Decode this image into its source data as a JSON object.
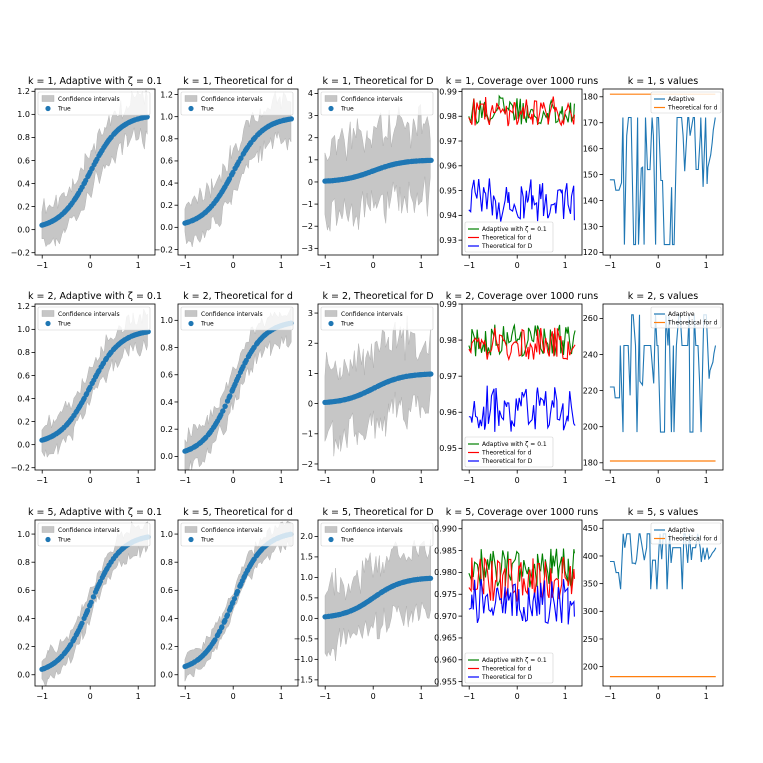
{
  "figure": {
    "description_free": true
  },
  "chart_data": [
    {
      "id": "p11",
      "row": 0,
      "col": 0,
      "type": "band_scatter",
      "title": "k = 1, Adaptive with ζ = 0.1",
      "xlim": [
        -1.15,
        1.35
      ],
      "ylim": [
        -0.22,
        1.22
      ],
      "xticks": [
        -1,
        0,
        1
      ],
      "xtick_labels": [
        "−1",
        "0",
        "1"
      ],
      "yticks": [
        -0.2,
        0.0,
        0.2,
        0.4,
        0.6,
        0.8,
        1.0,
        1.2
      ],
      "ytick_labels": [
        "−0.2",
        "0.0",
        "0.2",
        "0.4",
        "0.6",
        "0.8",
        "1.0",
        "1.2"
      ],
      "band_halfwidth": 0.15,
      "band_noise": 0.07,
      "seed": 11,
      "legend": [
        "Confidence intervals",
        "True"
      ],
      "curve_offset": 0
    },
    {
      "id": "p12",
      "row": 0,
      "col": 1,
      "type": "band_scatter",
      "title": "k = 1, Theoretical for d",
      "xlim": [
        -1.15,
        1.35
      ],
      "ylim": [
        -0.25,
        1.25
      ],
      "xticks": [
        -1,
        0,
        1
      ],
      "xtick_labels": [
        "−1",
        "0",
        "1"
      ],
      "yticks": [
        -0.2,
        0.0,
        0.2,
        0.4,
        0.6,
        0.8,
        1.0,
        1.2
      ],
      "ytick_labels": [
        "−0.2",
        "0.0",
        "0.2",
        "0.4",
        "0.6",
        "0.8",
        "1.0",
        "1.2"
      ],
      "band_halfwidth": 0.16,
      "band_noise": 0.07,
      "seed": 12,
      "legend": [
        "Confidence intervals",
        "True"
      ],
      "curve_offset": 0
    },
    {
      "id": "p13",
      "row": 0,
      "col": 2,
      "type": "band_scatter",
      "title": "k = 1, Theoretical for D",
      "xlim": [
        -1.15,
        1.35
      ],
      "ylim": [
        -3.3,
        4.2
      ],
      "xticks": [
        -1,
        0,
        1
      ],
      "xtick_labels": [
        "−1",
        "0",
        "1"
      ],
      "yticks": [
        -3,
        -2,
        -1,
        0,
        1,
        2,
        3,
        4
      ],
      "ytick_labels": [
        "−3",
        "−2",
        "−1",
        "0",
        "1",
        "2",
        "3",
        "4"
      ],
      "band_halfwidth": 1.2,
      "band_noise": 1.1,
      "seed": 13,
      "legend": [
        "Confidence intervals",
        "True"
      ],
      "curve_offset": 0
    },
    {
      "id": "p14",
      "row": 0,
      "col": 3,
      "type": "coverage",
      "title": "k = 1, Coverage over 1000 runs",
      "xlim": [
        -1.15,
        1.35
      ],
      "ylim": [
        0.924,
        0.991
      ],
      "xticks": [
        -1,
        0,
        1
      ],
      "xtick_labels": [
        "−1",
        "0",
        "1"
      ],
      "yticks": [
        0.93,
        0.94,
        0.95,
        0.96,
        0.97,
        0.98,
        0.99
      ],
      "ytick_labels": [
        "0.93",
        "0.94",
        "0.95",
        "0.96",
        "0.97",
        "0.98",
        "0.99"
      ],
      "series": [
        {
          "name": "Adaptive with ζ = 0.1",
          "color": "#008000",
          "mean": 0.9825,
          "amp": 0.006,
          "seed": 141
        },
        {
          "name": "Theoretical for d",
          "color": "#ff0000",
          "mean": 0.982,
          "amp": 0.006,
          "seed": 142
        },
        {
          "name": "Theoretical for D",
          "color": "#0000ff",
          "mean": 0.946,
          "amp": 0.009,
          "seed": 143
        }
      ],
      "legend_pos": "bottom-left"
    },
    {
      "id": "p15",
      "row": 0,
      "col": 4,
      "type": "s_values",
      "title": "k = 1, s values",
      "xlim": [
        -1.15,
        1.35
      ],
      "ylim": [
        119,
        183
      ],
      "xticks": [
        -1,
        0,
        1
      ],
      "xtick_labels": [
        "−1",
        "0",
        "1"
      ],
      "yticks": [
        120,
        130,
        140,
        150,
        160,
        170,
        180
      ],
      "ytick_labels": [
        "120",
        "130",
        "140",
        "150",
        "160",
        "170",
        "180"
      ],
      "adaptive_levels": [
        148,
        144,
        172,
        123,
        165
      ],
      "theory_value": 181,
      "seed": 15,
      "series_names": [
        "Adaptive",
        "Theoretical for d"
      ],
      "colors": [
        "#1f77b4",
        "#ff7f0e"
      ],
      "legend_pos": "top-right"
    },
    {
      "id": "p21",
      "row": 1,
      "col": 0,
      "type": "band_scatter",
      "title": "k = 2, Adaptive with ζ = 0.1",
      "xlim": [
        -1.15,
        1.35
      ],
      "ylim": [
        -0.22,
        1.22
      ],
      "xticks": [
        -1,
        0,
        1
      ],
      "xtick_labels": [
        "−1",
        "0",
        "1"
      ],
      "yticks": [
        -0.2,
        0.0,
        0.2,
        0.4,
        0.6,
        0.8,
        1.0,
        1.2
      ],
      "ytick_labels": [
        "−0.2",
        "0.0",
        "0.2",
        "0.4",
        "0.6",
        "0.8",
        "1.0",
        "1.2"
      ],
      "band_halfwidth": 0.12,
      "band_noise": 0.06,
      "seed": 21,
      "legend": [
        "Confidence intervals",
        "True"
      ],
      "curve_offset": 0
    },
    {
      "id": "p22",
      "row": 1,
      "col": 1,
      "type": "band_scatter",
      "title": "k = 2, Theoretical for d",
      "xlim": [
        -1.15,
        1.35
      ],
      "ylim": [
        -0.1,
        1.12
      ],
      "xticks": [
        -1,
        0,
        1
      ],
      "xtick_labels": [
        "−1",
        "0",
        "1"
      ],
      "yticks": [
        0.0,
        0.2,
        0.4,
        0.6,
        0.8,
        1.0
      ],
      "ytick_labels": [
        "0.0",
        "0.2",
        "0.4",
        "0.6",
        "0.8",
        "1.0"
      ],
      "band_halfwidth": 0.11,
      "band_noise": 0.05,
      "seed": 22,
      "legend": [
        "Confidence intervals",
        "True"
      ],
      "curve_offset": 0
    },
    {
      "id": "p23",
      "row": 1,
      "col": 2,
      "type": "band_scatter",
      "title": "k = 2, Theoretical for D",
      "xlim": [
        -1.15,
        1.35
      ],
      "ylim": [
        -2.2,
        3.3
      ],
      "xticks": [
        -1,
        0,
        1
      ],
      "xtick_labels": [
        "−1",
        "0",
        "1"
      ],
      "yticks": [
        -2,
        -1,
        0,
        1,
        2,
        3
      ],
      "ytick_labels": [
        "−2",
        "−1",
        "0",
        "1",
        "2",
        "3"
      ],
      "band_halfwidth": 0.9,
      "band_noise": 0.8,
      "seed": 23,
      "legend": [
        "Confidence intervals",
        "True"
      ],
      "curve_offset": 0
    },
    {
      "id": "p24",
      "row": 1,
      "col": 3,
      "type": "coverage",
      "title": "k = 2, Coverage over 1000 runs",
      "xlim": [
        -1.15,
        1.35
      ],
      "ylim": [
        0.944,
        0.99
      ],
      "xticks": [
        -1,
        0,
        1
      ],
      "xtick_labels": [
        "−1",
        "0",
        "1"
      ],
      "yticks": [
        0.95,
        0.96,
        0.97,
        0.98,
        0.99
      ],
      "ytick_labels": [
        "0.95",
        "0.96",
        "0.97",
        "0.98",
        "0.99"
      ],
      "series": [
        {
          "name": "Adaptive with ζ = 0.1",
          "color": "#008000",
          "mean": 0.98,
          "amp": 0.0045,
          "seed": 241
        },
        {
          "name": "Theoretical for d",
          "color": "#ff0000",
          "mean": 0.979,
          "amp": 0.0045,
          "seed": 242
        },
        {
          "name": "Theoretical for D",
          "color": "#0000ff",
          "mean": 0.961,
          "amp": 0.0065,
          "seed": 243
        }
      ],
      "legend_pos": "bottom-left"
    },
    {
      "id": "p25",
      "row": 1,
      "col": 4,
      "type": "s_values",
      "title": "k = 2, s values",
      "xlim": [
        -1.15,
        1.35
      ],
      "ylim": [
        176,
        268
      ],
      "xticks": [
        -1,
        0,
        1
      ],
      "xtick_labels": [
        "−1",
        "0",
        "1"
      ],
      "yticks": [
        180,
        200,
        220,
        240,
        260
      ],
      "ytick_labels": [
        "180",
        "200",
        "220",
        "240",
        "260"
      ],
      "adaptive_levels": [
        222,
        216,
        245,
        197,
        262
      ],
      "theory_value": 181,
      "seed": 25,
      "series_names": [
        "Adaptive",
        "Theoretical for d"
      ],
      "colors": [
        "#1f77b4",
        "#ff7f0e"
      ],
      "legend_pos": "top-right"
    },
    {
      "id": "p31",
      "row": 2,
      "col": 0,
      "type": "band_scatter",
      "title": "k = 5, Adaptive with ζ = 0.1",
      "xlim": [
        -1.15,
        1.35
      ],
      "ylim": [
        -0.08,
        1.1
      ],
      "xticks": [
        -1,
        0,
        1
      ],
      "xtick_labels": [
        "−1",
        "0",
        "1"
      ],
      "yticks": [
        0.0,
        0.2,
        0.4,
        0.6,
        0.8,
        1.0
      ],
      "ytick_labels": [
        "0.0",
        "0.2",
        "0.4",
        "0.6",
        "0.8",
        "1.0"
      ],
      "band_halfwidth": 0.08,
      "band_noise": 0.04,
      "seed": 31,
      "legend": [
        "Confidence intervals",
        "True"
      ],
      "curve_offset": 0
    },
    {
      "id": "p32",
      "row": 2,
      "col": 1,
      "type": "band_scatter",
      "title": "k = 5, Theoretical for d",
      "xlim": [
        -1.15,
        1.35
      ],
      "ylim": [
        -0.08,
        1.1
      ],
      "xticks": [
        -1,
        0,
        1
      ],
      "xtick_labels": [
        "−1",
        "0",
        "1"
      ],
      "yticks": [
        0.0,
        0.2,
        0.4,
        0.6,
        0.8,
        1.0
      ],
      "ytick_labels": [
        "0.0",
        "0.2",
        "0.4",
        "0.6",
        "0.8",
        "1.0"
      ],
      "band_halfwidth": 0.07,
      "band_noise": 0.03,
      "seed": 32,
      "legend": [
        "Confidence intervals",
        "True"
      ],
      "curve_offset": 0.02
    },
    {
      "id": "p33",
      "row": 2,
      "col": 2,
      "type": "band_scatter",
      "title": "k = 5, Theoretical for D",
      "xlim": [
        -1.15,
        1.35
      ],
      "ylim": [
        -1.65,
        2.4
      ],
      "xticks": [
        -1,
        0,
        1
      ],
      "xtick_labels": [
        "−1",
        "0",
        "1"
      ],
      "yticks": [
        -1.5,
        -1.0,
        -0.5,
        0.0,
        0.5,
        1.0,
        1.5,
        2.0
      ],
      "ytick_labels": [
        "−1.5",
        "−1.0",
        "−0.5",
        "0.0",
        "0.5",
        "1.0",
        "1.5",
        "2.0"
      ],
      "band_halfwidth": 0.6,
      "band_noise": 0.45,
      "seed": 33,
      "legend": [
        "Confidence intervals",
        "True"
      ],
      "curve_offset": 0
    },
    {
      "id": "p34",
      "row": 2,
      "col": 3,
      "type": "coverage",
      "title": "k = 5, Coverage over 1000 runs",
      "xlim": [
        -1.15,
        1.35
      ],
      "ylim": [
        0.954,
        0.992
      ],
      "xticks": [
        -1,
        0,
        1
      ],
      "xtick_labels": [
        "−1",
        "0",
        "1"
      ],
      "yticks": [
        0.955,
        0.96,
        0.965,
        0.97,
        0.975,
        0.98,
        0.985,
        0.99
      ],
      "ytick_labels": [
        "0.955",
        "0.960",
        "0.965",
        "0.970",
        "0.975",
        "0.980",
        "0.985",
        "0.990"
      ],
      "series": [
        {
          "name": "Adaptive with ζ = 0.1",
          "color": "#008000",
          "mean": 0.981,
          "amp": 0.0045,
          "seed": 341
        },
        {
          "name": "Theoretical for d",
          "color": "#ff0000",
          "mean": 0.978,
          "amp": 0.0055,
          "seed": 342
        },
        {
          "name": "Theoretical for D",
          "color": "#0000ff",
          "mean": 0.973,
          "amp": 0.0055,
          "seed": 343
        }
      ],
      "legend_pos": "bottom-left"
    },
    {
      "id": "p35",
      "row": 2,
      "col": 4,
      "type": "s_values",
      "title": "k = 5, s values",
      "xlim": [
        -1.15,
        1.35
      ],
      "ylim": [
        165,
        465
      ],
      "xticks": [
        -1,
        0,
        1
      ],
      "xtick_labels": [
        "−1",
        "0",
        "1"
      ],
      "yticks": [
        200,
        250,
        300,
        350,
        400,
        450
      ],
      "ytick_labels": [
        "200",
        "250",
        "300",
        "350",
        "400",
        "450"
      ],
      "adaptive_levels": [
        390,
        370,
        415,
        340,
        440
      ],
      "theory_value": 182,
      "seed": 35,
      "series_names": [
        "Adaptive",
        "Theoretical for d"
      ],
      "colors": [
        "#1f77b4",
        "#ff7f0e"
      ],
      "legend_pos": "top-right"
    }
  ]
}
